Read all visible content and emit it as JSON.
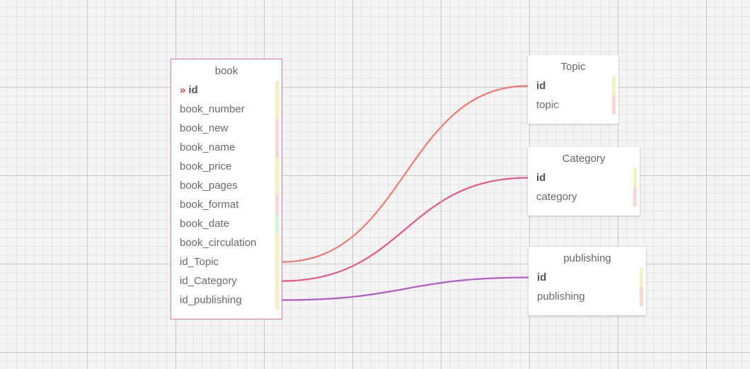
{
  "diagram": {
    "tables": [
      {
        "id": "book",
        "title": "book",
        "selected": true,
        "fields": [
          {
            "name": "id",
            "pk": true,
            "marker": "»",
            "strip": "#f3f0c2"
          },
          {
            "name": "book_number",
            "strip": "#f3f0c2"
          },
          {
            "name": "book_new",
            "strip": "#f9d6d6"
          },
          {
            "name": "book_name",
            "strip": "#f9d6d6"
          },
          {
            "name": "book_price",
            "strip": "#f3f0c2"
          },
          {
            "name": "book_pages",
            "strip": "#f3f0c2"
          },
          {
            "name": "book_format",
            "strip": "#f9d6d6"
          },
          {
            "name": "book_date",
            "strip": "#d9f5d9"
          },
          {
            "name": "book_circulation",
            "strip": "#f3f0c2"
          },
          {
            "name": "id_Topic",
            "strip": "#f3f0c2"
          },
          {
            "name": "id_Category",
            "strip": "#f3f0c2"
          },
          {
            "name": "id_publishing",
            "strip": "#f3f0c2"
          }
        ]
      },
      {
        "id": "topic",
        "title": "Topic",
        "fields": [
          {
            "name": "id",
            "pk": true,
            "strip": "#f3f0c2"
          },
          {
            "name": "topic",
            "strip": "#f9d6d6"
          }
        ]
      },
      {
        "id": "category",
        "title": "Category",
        "fields": [
          {
            "name": "id",
            "pk": true,
            "strip": "#f3f0c2"
          },
          {
            "name": "category",
            "strip": "#f9d6d6"
          }
        ]
      },
      {
        "id": "publishing",
        "title": "publishing",
        "fields": [
          {
            "name": "id",
            "pk": true,
            "strip": "#f3f0c2"
          },
          {
            "name": "publishing",
            "strip": "#f9d6d6"
          }
        ]
      }
    ],
    "links": [
      {
        "from_table": "book",
        "from_field": "id_Topic",
        "to_table": "topic",
        "to_field": "id",
        "color": "#ef7a72"
      },
      {
        "from_table": "book",
        "from_field": "id_Category",
        "to_table": "category",
        "to_field": "id",
        "color": "#e65a8a"
      },
      {
        "from_table": "book",
        "from_field": "id_publishing",
        "to_table": "publishing",
        "to_field": "id",
        "color": "#b35cc8"
      }
    ]
  }
}
